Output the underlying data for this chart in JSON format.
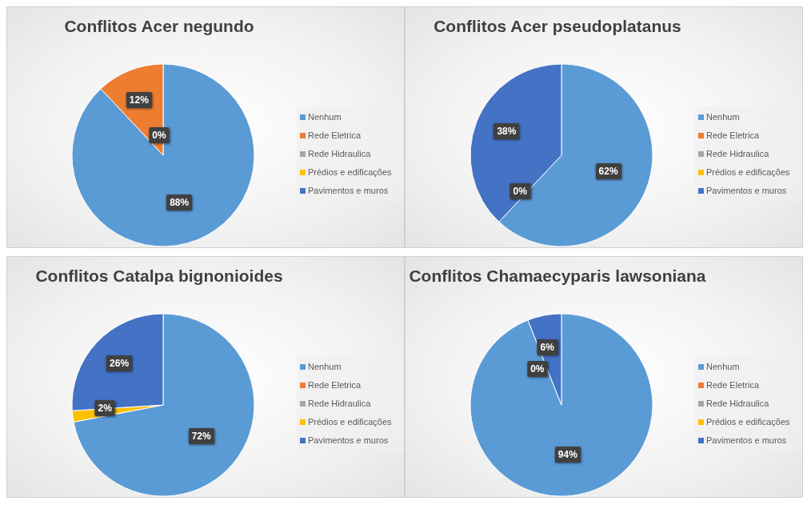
{
  "chart_data": [
    {
      "type": "pie",
      "title": "Conflitos Acer negundo",
      "categories": [
        "Nenhum",
        "Rede Eletrica",
        "Rede Hidraulica",
        "Prédios e edificações",
        "Pavimentos e muros"
      ],
      "values": [
        88,
        12,
        0,
        0,
        0
      ],
      "colors": [
        "#5b9bd5",
        "#ed7d31",
        "#a5a5a5",
        "#ffc000",
        "#4472c4"
      ],
      "value_labels": [
        "88%",
        "12%",
        "0%",
        null,
        null
      ],
      "legend": "right"
    },
    {
      "type": "pie",
      "title": "Conflitos Acer pseudoplatanus",
      "categories": [
        "Nenhum",
        "Rede Eletrica",
        "Rede Hidraulica",
        "Prédios e edificações",
        "Pavimentos e muros"
      ],
      "values": [
        62,
        0,
        0,
        0,
        38
      ],
      "colors": [
        "#5b9bd5",
        "#ed7d31",
        "#a5a5a5",
        "#ffc000",
        "#4472c4"
      ],
      "value_labels": [
        "62%",
        null,
        null,
        "0%",
        "38%"
      ],
      "legend": "right"
    },
    {
      "type": "pie",
      "title": "Conflitos Catalpa bignonioides",
      "categories": [
        "Nenhum",
        "Rede Eletrica",
        "Rede Hidraulica",
        "Prédios e edificações",
        "Pavimentos e muros"
      ],
      "values": [
        72,
        0,
        0,
        2,
        26
      ],
      "colors": [
        "#5b9bd5",
        "#ed7d31",
        "#a5a5a5",
        "#ffc000",
        "#4472c4"
      ],
      "value_labels": [
        "72%",
        null,
        null,
        "2%",
        "26%"
      ],
      "legend": "right"
    },
    {
      "type": "pie",
      "title": "Conflitos Chamaecyparis lawsoniana",
      "categories": [
        "Nenhum",
        "Rede Eletrica",
        "Rede Hidraulica",
        "Prédios e edificações",
        "Pavimentos e muros"
      ],
      "values": [
        94,
        0,
        0,
        0,
        6
      ],
      "colors": [
        "#5b9bd5",
        "#ed7d31",
        "#a5a5a5",
        "#ffc000",
        "#4472c4"
      ],
      "value_labels": [
        "94%",
        null,
        null,
        "0%",
        "6%"
      ],
      "legend": "right"
    }
  ]
}
